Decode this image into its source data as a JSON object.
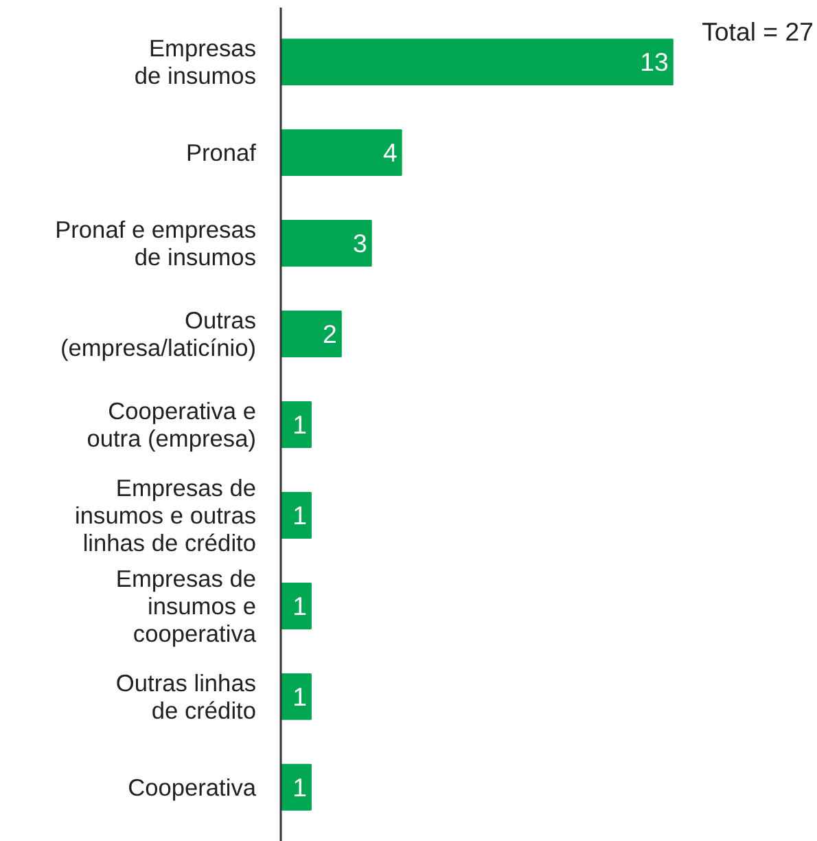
{
  "chart_data": {
    "type": "bar",
    "orientation": "horizontal",
    "data_labels": true,
    "categories": [
      "Empresas\nde insumos",
      "Pronaf",
      "Pronaf e empresas\nde insumos",
      "Outras\n(empresa/laticínio)",
      "Cooperativa e\noutra (empresa)",
      "Empresas de\ninsumos e outras\nlinhas de crédito",
      "Empresas de\ninsumos e\ncooperativa",
      "Outras linhas\nde crédito",
      "Cooperativa"
    ],
    "values": [
      13,
      4,
      3,
      2,
      1,
      1,
      1,
      1,
      1
    ],
    "color": "#00a651",
    "annotations": [
      "Total = 27"
    ],
    "grid": false
  }
}
